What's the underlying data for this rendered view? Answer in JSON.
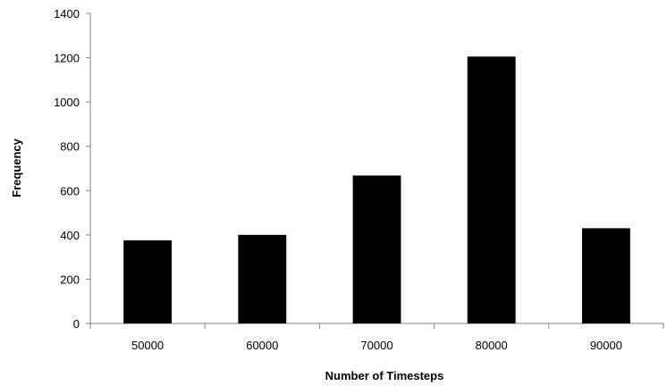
{
  "chart_data": {
    "type": "bar",
    "categories": [
      "50000",
      "60000",
      "70000",
      "80000",
      "90000"
    ],
    "values": [
      375,
      400,
      668,
      1205,
      430
    ],
    "title": "",
    "xlabel": "Number of Timesteps",
    "ylabel": "Frequency",
    "ylim": [
      0,
      1400
    ],
    "yticks": [
      "0",
      "200",
      "400",
      "600",
      "800",
      "1000",
      "1200",
      "1400"
    ],
    "grid": false,
    "legend": "none",
    "bar_color": "#000000",
    "axis_color": "#868686"
  }
}
